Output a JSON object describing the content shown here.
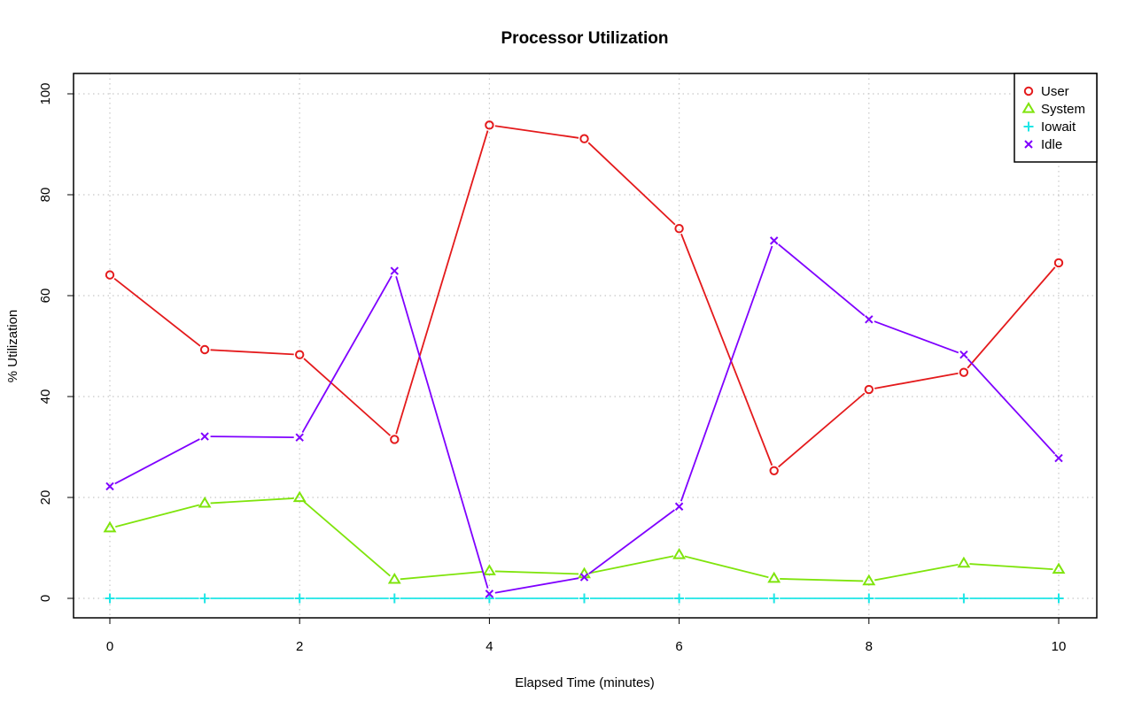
{
  "chart_data": {
    "type": "line",
    "title": "Processor Utilization",
    "xlabel": "Elapsed Time (minutes)",
    "ylabel": "% Utilization",
    "xlim": [
      0,
      10
    ],
    "ylim": [
      0,
      100
    ],
    "x_ticks": [
      "0",
      "2",
      "4",
      "6",
      "8",
      "10"
    ],
    "y_ticks": [
      "0",
      "20",
      "40",
      "60",
      "80",
      "100"
    ],
    "grid": true,
    "legend_position": "top-right",
    "x": [
      0,
      1,
      2,
      3,
      4,
      5,
      6,
      7,
      8,
      9,
      10
    ],
    "series": [
      {
        "name": "User",
        "color": "#e41a1c",
        "marker": "circle",
        "values": [
          64.1,
          49.3,
          48.3,
          31.5,
          93.8,
          91.1,
          73.3,
          25.3,
          41.4,
          44.8,
          66.5
        ]
      },
      {
        "name": "System",
        "color": "#7fe40c",
        "marker": "triangle",
        "values": [
          13.9,
          18.8,
          19.9,
          3.7,
          5.4,
          4.8,
          8.6,
          3.9,
          3.4,
          6.9,
          5.7
        ]
      },
      {
        "name": "Iowait",
        "color": "#1ee6e6",
        "marker": "plus",
        "values": [
          0,
          0,
          0,
          0,
          0,
          0,
          0,
          0,
          0,
          0,
          0
        ]
      },
      {
        "name": "Idle",
        "color": "#7f00ff",
        "marker": "cross",
        "values": [
          22.2,
          32.1,
          31.9,
          64.9,
          0.9,
          4.2,
          18.2,
          70.9,
          55.3,
          48.3,
          27.8
        ]
      }
    ]
  }
}
